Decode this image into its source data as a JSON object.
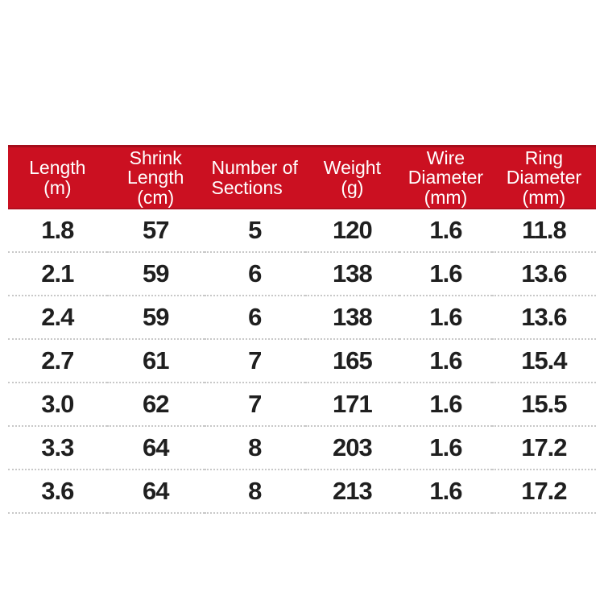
{
  "chart_data": {
    "type": "table",
    "columns": [
      {
        "label": "Length (m)",
        "label_lines": [
          "Length",
          "(m)"
        ]
      },
      {
        "label": "Shrink Length (cm)",
        "label_lines": [
          "Shrink",
          "Length",
          "(cm)"
        ]
      },
      {
        "label": "Number of Sections",
        "label_lines": [
          "Number of",
          "Sections"
        ]
      },
      {
        "label": "Weight (g)",
        "label_lines": [
          "Weight",
          "(g)"
        ]
      },
      {
        "label": "Wire Diameter (mm)",
        "label_lines": [
          "Wire",
          "Diameter",
          "(mm)"
        ]
      },
      {
        "label": "Ring Diameter (mm)",
        "label_lines": [
          "Ring",
          "Diameter",
          "(mm)"
        ]
      }
    ],
    "rows": [
      [
        "1.8",
        "57",
        "5",
        "120",
        "1.6",
        "11.8"
      ],
      [
        "2.1",
        "59",
        "6",
        "138",
        "1.6",
        "13.6"
      ],
      [
        "2.4",
        "59",
        "6",
        "138",
        "1.6",
        "13.6"
      ],
      [
        "2.7",
        "61",
        "7",
        "165",
        "1.6",
        "15.4"
      ],
      [
        "3.0",
        "62",
        "7",
        "171",
        "1.6",
        "15.5"
      ],
      [
        "3.3",
        "64",
        "8",
        "203",
        "1.6",
        "17.2"
      ],
      [
        "3.6",
        "64",
        "8",
        "213",
        "1.6",
        "17.2"
      ]
    ],
    "colors": {
      "header_background": "#CB1021",
      "header_edge": "#A50D1B",
      "header_text": "#FFFFFF",
      "body_text": "#1F1F1F",
      "row_divider": "#C8C8C8",
      "page_background": "#FFFFFF"
    },
    "layout_hints": {
      "grid": "dotted horizontal dividers only",
      "header_position": "top"
    }
  }
}
